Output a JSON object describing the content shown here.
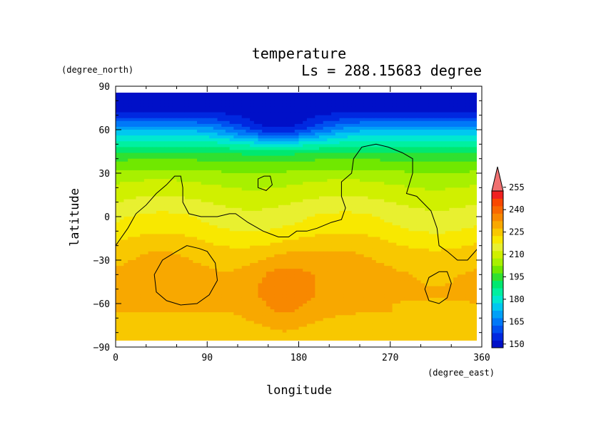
{
  "chart_data": {
    "type": "heatmap",
    "title": "temperature",
    "subtitle": "Ls = 288.15683 degree",
    "xlabel": "longitude",
    "ylabel": "latitude",
    "xunit": "(degree_east)",
    "yunit": "(degree_north)",
    "xlim": [
      0,
      360
    ],
    "ylim": [
      -90,
      90
    ],
    "xticks": [
      "0",
      "90",
      "180",
      "270",
      "360"
    ],
    "yticks": [
      "90",
      "60",
      "30",
      "0",
      "−30",
      "−60",
      "−90"
    ],
    "colorbar": {
      "levels": [
        150,
        155,
        160,
        165,
        170,
        175,
        180,
        185,
        190,
        195,
        200,
        205,
        210,
        215,
        220,
        225,
        230,
        235,
        240,
        245,
        250,
        255
      ],
      "tick_labels": [
        "150",
        "165",
        "180",
        "195",
        "210",
        "225",
        "240",
        "255"
      ],
      "extend": "max",
      "colors": [
        "#0010c8",
        "#0028e0",
        "#0050f0",
        "#0078f8",
        "#00a0f8",
        "#00c8f0",
        "#00e8d0",
        "#00f0a0",
        "#00e870",
        "#30e030",
        "#70e800",
        "#a8f000",
        "#d0f000",
        "#e8f030",
        "#f8e800",
        "#f8c800",
        "#f8a800",
        "#f88800",
        "#f86800",
        "#f84800",
        "#f02020",
        "#f07070"
      ]
    },
    "latitude_profile": {
      "lat": [
        85,
        80,
        75,
        70,
        65,
        60,
        55,
        50,
        45,
        40,
        35,
        30,
        25,
        20,
        15,
        10,
        5,
        0,
        -5,
        -10,
        -15,
        -20,
        -25,
        -30,
        -35,
        -40,
        -45,
        -50,
        -55,
        -60,
        -65,
        -70,
        -75,
        -80,
        -85
      ],
      "temperature": [
        148,
        149,
        152,
        158,
        166,
        175,
        182,
        188,
        194,
        199,
        203,
        206,
        209,
        211,
        213,
        215,
        217,
        219,
        220,
        222,
        224,
        226,
        228,
        229,
        230,
        231,
        231,
        231,
        231,
        230,
        230,
        229,
        228,
        228,
        227
      ]
    },
    "warm_core": {
      "lon_range": [
        130,
        200
      ],
      "lat_range": [
        -25,
        -75
      ],
      "peak": 237
    },
    "cold_wave_60N": {
      "lon_range": [
        110,
        210
      ],
      "peak_lat": 78
    }
  }
}
